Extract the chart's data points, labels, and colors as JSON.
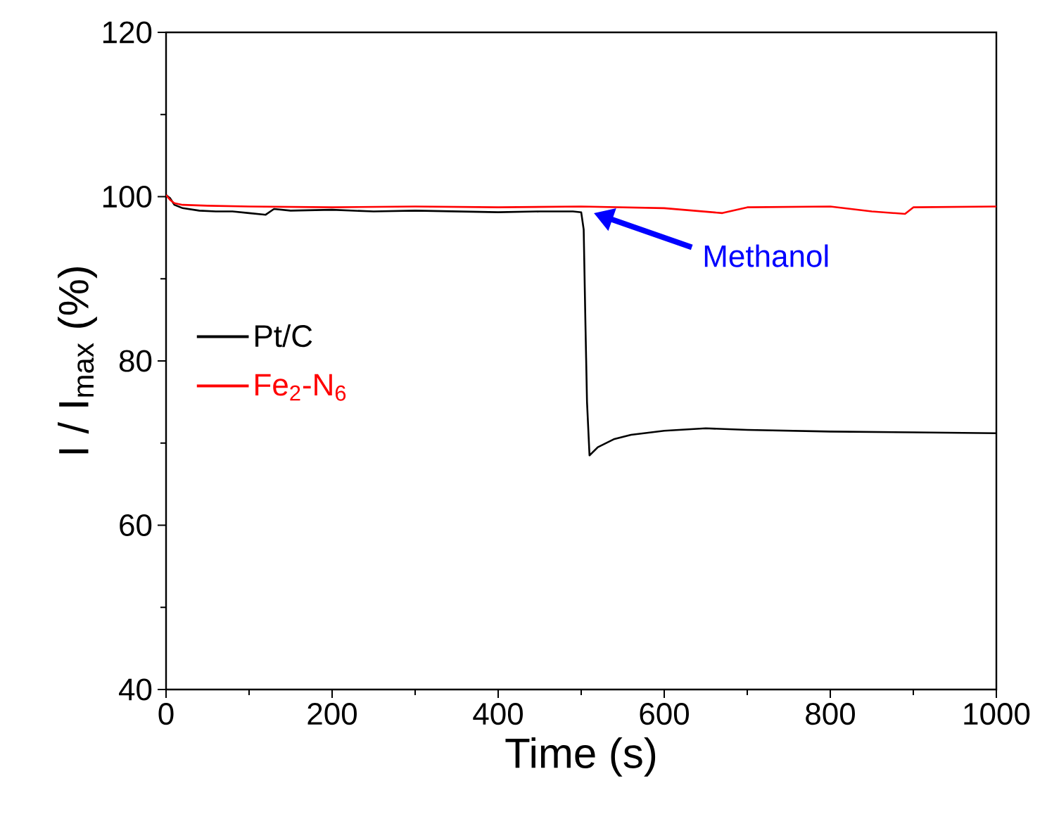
{
  "chart_data": {
    "type": "line",
    "xlabel": "Time (s)",
    "ylabel": "I / I$_{max}$ (%)",
    "xlim": [
      0,
      1000
    ],
    "ylim": [
      40,
      120
    ],
    "xticks": [
      0,
      200,
      400,
      600,
      800,
      1000
    ],
    "yticks": [
      40,
      60,
      80,
      100,
      120
    ],
    "grid": false,
    "legend": "left",
    "marker": "none",
    "line_style": "solid",
    "annotations": [
      "Methanol"
    ],
    "series": [
      {
        "name": "Pt/C",
        "color": "#000000",
        "x": [
          0,
          5,
          10,
          20,
          40,
          60,
          80,
          100,
          120,
          130,
          150,
          200,
          250,
          300,
          350,
          400,
          450,
          490,
          500,
          503,
          505,
          507,
          510,
          520,
          540,
          560,
          600,
          650,
          700,
          800,
          900,
          1000
        ],
        "values": [
          100.2,
          99.8,
          99.0,
          98.6,
          98.3,
          98.2,
          98.2,
          98.0,
          97.8,
          98.5,
          98.3,
          98.4,
          98.2,
          98.3,
          98.2,
          98.1,
          98.2,
          98.2,
          98.1,
          96.0,
          85.0,
          75.0,
          68.5,
          69.5,
          70.5,
          71.0,
          71.5,
          71.8,
          71.6,
          71.4,
          71.3,
          71.2
        ]
      },
      {
        "name": "Fe$_{2}$-N$_{6}$",
        "color": "#ff0000",
        "x": [
          0,
          5,
          10,
          20,
          50,
          100,
          200,
          300,
          400,
          500,
          600,
          670,
          700,
          800,
          850,
          890,
          900,
          1000
        ],
        "values": [
          100.2,
          99.6,
          99.2,
          99.0,
          98.9,
          98.8,
          98.7,
          98.8,
          98.7,
          98.8,
          98.6,
          98.0,
          98.7,
          98.8,
          98.2,
          97.9,
          98.7,
          98.8
        ]
      }
    ]
  }
}
